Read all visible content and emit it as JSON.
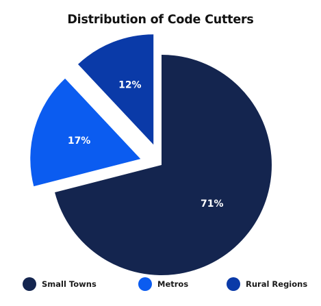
{
  "chart_data": {
    "type": "pie",
    "title": "Distribution of Code Cutters",
    "slices": [
      {
        "label": "Small Towns",
        "value": 71,
        "display": "71%",
        "color": "#14254f",
        "exploded": false
      },
      {
        "label": "Metros",
        "value": 17,
        "display": "17%",
        "color": "#0b5cf0",
        "exploded": true
      },
      {
        "label": "Rural Regions",
        "value": 12,
        "display": "12%",
        "color": "#0a3aa8",
        "exploded": true
      }
    ],
    "legend_position": "bottom"
  }
}
